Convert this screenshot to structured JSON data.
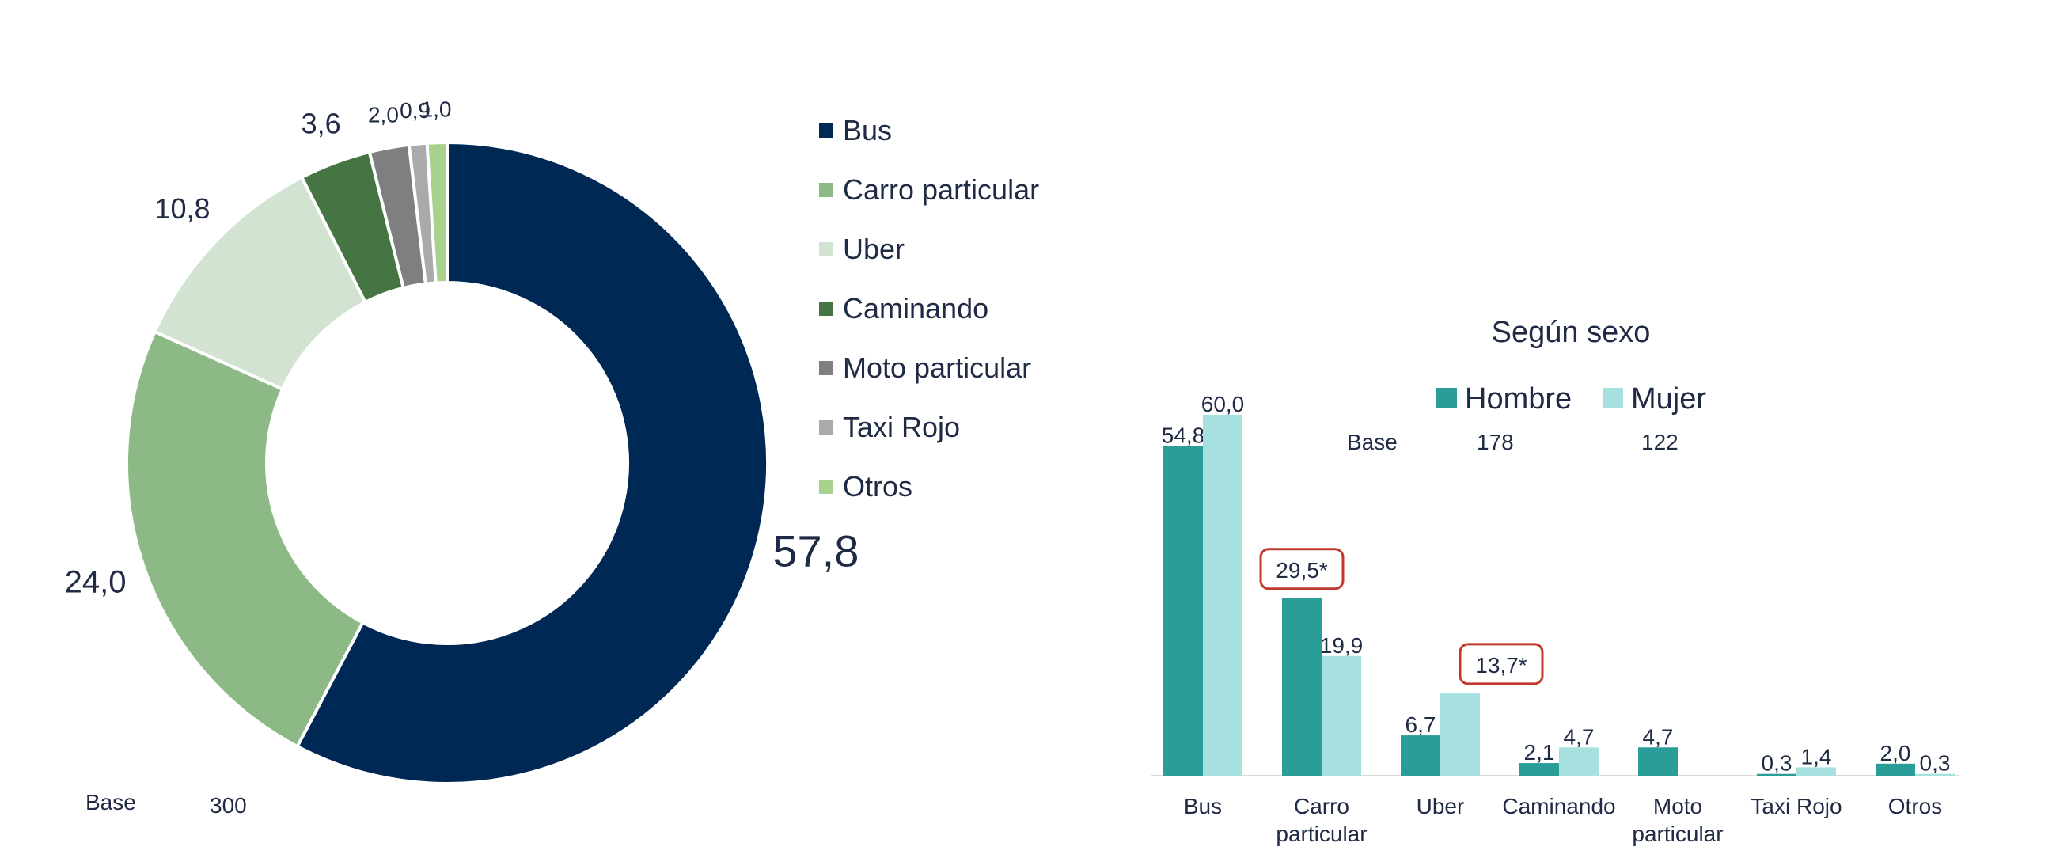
{
  "chart_data": [
    {
      "type": "pie",
      "donut": true,
      "categories": [
        "Bus",
        "Carro particular",
        "Uber",
        "Caminando",
        "Moto particular",
        "Taxi Rojo",
        "Otros"
      ],
      "values": [
        57.8,
        24.0,
        10.8,
        3.6,
        2.0,
        0.9,
        1.0
      ],
      "value_labels": [
        "57,8",
        "24,0",
        "10,8",
        "3,6",
        "2,0",
        "0,9",
        "1,0"
      ],
      "colors": [
        "#002855",
        "#8cb985",
        "#d2e4d1",
        "#447542",
        "#7f7f7f",
        "#aaaaaa",
        "#a9d18e"
      ],
      "legend": "right",
      "base_label": "Base",
      "base_value": "300"
    },
    {
      "type": "bar",
      "title": "Según sexo",
      "categories": [
        "Bus",
        "Carro particular",
        "Uber",
        "Caminando",
        "Moto particular",
        "Taxi Rojo",
        "Otros"
      ],
      "category_lines": [
        [
          "Bus"
        ],
        [
          "Carro",
          "particular"
        ],
        [
          "Uber"
        ],
        [
          "Caminando"
        ],
        [
          "Moto",
          "particular"
        ],
        [
          "Taxi Rojo"
        ],
        [
          "Otros"
        ]
      ],
      "series": [
        {
          "name": "Hombre",
          "color": "#2a9d98",
          "values": [
            54.8,
            29.5,
            6.7,
            2.1,
            4.7,
            0.3,
            2.0
          ],
          "labels": [
            "54,8",
            "29,5*",
            "6,7",
            "2,1",
            "4,7",
            "0,3",
            "2,0"
          ]
        },
        {
          "name": "Mujer",
          "color": "#a6e1e0",
          "values": [
            60.0,
            19.9,
            13.7,
            4.7,
            null,
            1.4,
            0.3
          ],
          "labels": [
            "60,0",
            "19,9",
            "13,7*",
            "4,7",
            "",
            "1,4",
            "0,3"
          ]
        }
      ],
      "highlighted": [
        "29,5*",
        "13,7*"
      ],
      "highlight_color": "#c0392b",
      "base_label": "Base",
      "base_values": [
        "178",
        "122"
      ],
      "legend": "top",
      "ylim": [
        0,
        60
      ]
    }
  ]
}
